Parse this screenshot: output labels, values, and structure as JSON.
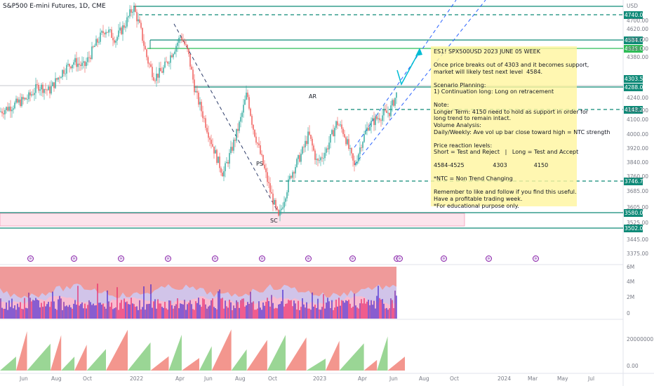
{
  "header": {
    "title": "S&P500 E-mini Futures, 1D, CME"
  },
  "note": {
    "lines": [
      "ES1! SPX500USD 2023 JUNE 05 WEEK",
      "",
      "Once price breaks out of 4303 and it becomes support,",
      "market will likely test next level  4584.",
      "",
      "Scenario Planning:",
      "1) Continuation long: Long on retracement",
      "",
      "Note:",
      "Longer Term: 4150 need to hold as support in order for",
      "long trend to remain intact.",
      "Volume Analysis:",
      "Daily/Weekly: Ave vol up bar close toward high = NTC strength",
      "",
      "Price reaction levels:",
      "Short = Test and Reject   |   Long = Test and Accept",
      "",
      "4584-4525                4303               4150",
      "",
      "*NTC = Non Trend Changing",
      "",
      "Remember to like and follow if you find this useful.",
      "Have a profitable trading week.",
      "*For educational purpose only."
    ]
  },
  "chart_data": {
    "type": "line",
    "title": "S&P500 E-mini Futures, 1D, CME",
    "currency": "USD",
    "x_ticks": [
      "Jun",
      "Aug",
      "Oct",
      "2022",
      "Apr",
      "Jun",
      "Aug",
      "Oct",
      "2023",
      "Apr",
      "Jun",
      "Aug",
      "Oct",
      "2024",
      "Mar",
      "May",
      "Jul"
    ],
    "y_ticks": [
      "4700.00",
      "4620.00",
      "4540.00",
      "4460.00",
      "4380.00",
      "4240.00",
      "4170.00",
      "4100.00",
      "4000.00",
      "3920.00",
      "3840.00",
      "3760.00",
      "3685.00",
      "3605.00",
      "3525.00",
      "3445.00",
      "3375.00"
    ],
    "levels": [
      {
        "label": "4740.00",
        "price": 4740,
        "color": "#0f8a78",
        "style": "dashed"
      },
      {
        "label": "4584.00",
        "price": 4584,
        "color": "#0f8a78",
        "style": "solid"
      },
      {
        "label": "4525.00",
        "price": 4525,
        "color": "#2ebd57",
        "style": "solid"
      },
      {
        "label": "4303.50",
        "price": 4303.5,
        "color": "#0f8a78",
        "style": "label"
      },
      {
        "label": "4288.00",
        "price": 4288,
        "color": "#0f8a78",
        "style": "solid"
      },
      {
        "label": "4148.25",
        "price": 4148.25,
        "color": "#0f8a78",
        "style": "dashed"
      },
      {
        "label": "3746.75",
        "price": 3746.75,
        "color": "#0f8a78",
        "style": "dashed"
      },
      {
        "label": "3580.00",
        "price": 3580,
        "color": "#0f8a78",
        "style": "solid"
      },
      {
        "label": "3502.00",
        "price": 3502,
        "color": "#0f8a78",
        "style": "solid"
      }
    ],
    "annotations": [
      "AR",
      "PS",
      "SC"
    ],
    "volume_ticks": [
      "6M",
      "4M",
      "2M",
      "0"
    ],
    "indicator_ticks": [
      "20000000.00",
      "0.00"
    ]
  }
}
